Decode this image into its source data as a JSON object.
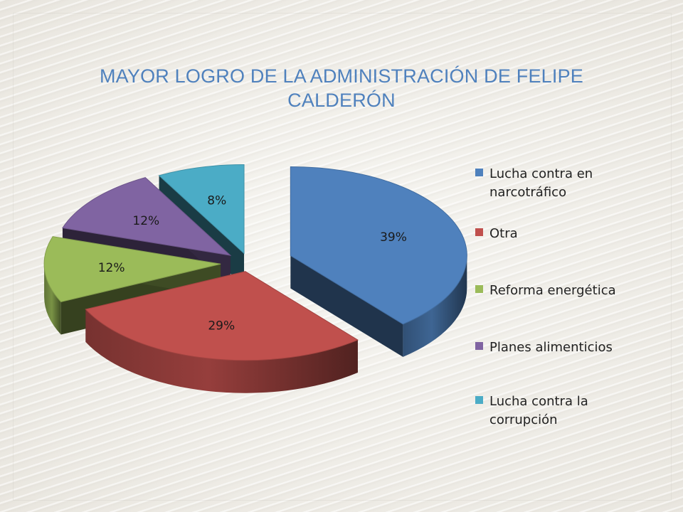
{
  "chart_data": {
    "type": "pie",
    "title_lines": [
      "MAYOR LOGRO DE LA ADMINISTRACIÓN DE FELIPE",
      "CALDERÓN"
    ],
    "categories": [
      "Lucha contra en narcotráfico",
      "Otra",
      "Reforma energética",
      "Planes alimenticios",
      "Lucha contra la corrupción"
    ],
    "values": [
      39,
      29,
      12,
      12,
      8
    ],
    "labels": [
      "39%",
      "29%",
      "12%",
      "12%",
      "8%"
    ],
    "colors": [
      "#4f81bd",
      "#c0504d",
      "#9bbb59",
      "#8064a2",
      "#4bacc6"
    ],
    "legend_lines": [
      [
        "Lucha contra en",
        "narcotráfico"
      ],
      [
        "Otra"
      ],
      [
        "Reforma energética"
      ],
      [
        "Planes alimenticios"
      ],
      [
        "Lucha contra la",
        "corrupción"
      ]
    ],
    "legend_position": "right",
    "style": "3d-exploded"
  }
}
